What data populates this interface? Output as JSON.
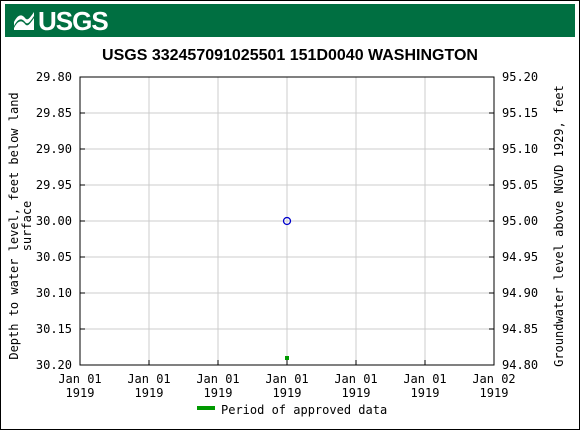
{
  "header": {
    "logo_text": "USGS",
    "banner_color": "#006f41"
  },
  "chart_data": {
    "type": "scatter",
    "title": "USGS 332457091025501 151D0040  WASHINGTON",
    "ylabel_left_lines": [
      "Depth to water level, feet below land",
      "surface"
    ],
    "ylabel_right": "Groundwater level above NGVD 1929, feet",
    "ylim_left": [
      29.8,
      30.2
    ],
    "ylim_right": [
      95.2,
      94.8
    ],
    "yticks_left": [
      "29.80",
      "29.85",
      "29.90",
      "29.95",
      "30.00",
      "30.05",
      "30.10",
      "30.15",
      "30.20"
    ],
    "yticks_right": [
      "95.20",
      "95.15",
      "95.10",
      "95.05",
      "95.00",
      "94.95",
      "94.90",
      "94.85",
      "94.80"
    ],
    "xticks": [
      {
        "line1": "Jan 01",
        "line2": "1919"
      },
      {
        "line1": "Jan 01",
        "line2": "1919"
      },
      {
        "line1": "Jan 01",
        "line2": "1919"
      },
      {
        "line1": "Jan 01",
        "line2": "1919"
      },
      {
        "line1": "Jan 01",
        "line2": "1919"
      },
      {
        "line1": "Jan 01",
        "line2": "1919"
      },
      {
        "line1": "Jan 02",
        "line2": "1919"
      }
    ],
    "grid": true,
    "points": [
      {
        "x": "1919-01-01 12:00",
        "depth": 30.0,
        "elevation": 95.0,
        "marker": "open-circle",
        "color": "#0000cc"
      }
    ],
    "approved_marks": [
      {
        "x": "1919-01-01 12:00",
        "color": "#009900"
      }
    ],
    "legend": {
      "label": "Period of approved data",
      "color": "#009900",
      "placement": "bottom"
    }
  }
}
